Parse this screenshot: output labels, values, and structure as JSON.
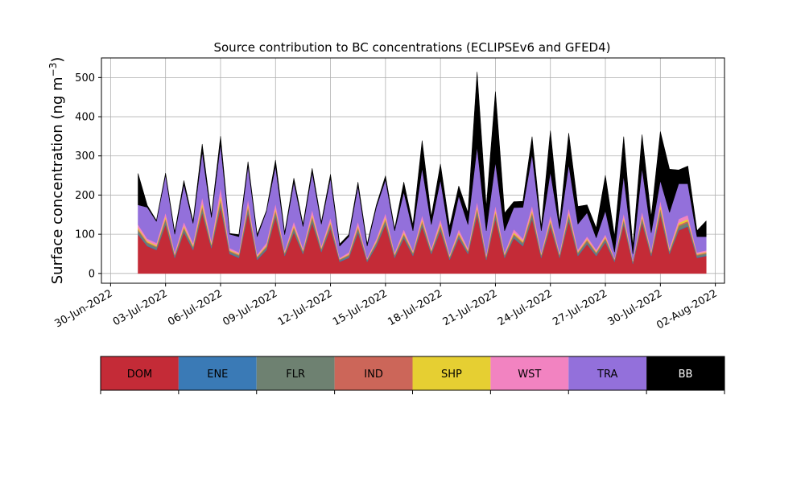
{
  "chart_data": {
    "type": "area",
    "title": "Source contribution to BC concentrations (ECLIPSEv6 and GFED4)",
    "ylabel": "Surface concentration (ng m",
    "ylabel_unit_exp": "−3",
    "ylabel_close": ")",
    "xlabel": "",
    "grid": true,
    "ylim": [
      -25,
      550
    ],
    "yticks": [
      0,
      100,
      200,
      300,
      400,
      500
    ],
    "xlim": [
      "2022-06-29T12:00",
      "2022-08-02T12:00"
    ],
    "xticks": [
      "2022-06-30",
      "2022-07-03",
      "2022-07-06",
      "2022-07-09",
      "2022-07-12",
      "2022-07-15",
      "2022-07-18",
      "2022-07-21",
      "2022-07-24",
      "2022-07-27",
      "2022-07-30",
      "2022-08-02"
    ],
    "xtick_labels": [
      "30-Jun-2022",
      "03-Jul-2022",
      "06-Jul-2022",
      "09-Jul-2022",
      "12-Jul-2022",
      "15-Jul-2022",
      "18-Jul-2022",
      "21-Jul-2022",
      "24-Jul-2022",
      "27-Jul-2022",
      "30-Jul-2022",
      "02-Aug-2022"
    ],
    "x": [
      "2022-07-01T12:00",
      "2022-07-02",
      "2022-07-02T12:00",
      "2022-07-03",
      "2022-07-03T12:00",
      "2022-07-04",
      "2022-07-04T12:00",
      "2022-07-05",
      "2022-07-05T12:00",
      "2022-07-06",
      "2022-07-06T12:00",
      "2022-07-07",
      "2022-07-07T12:00",
      "2022-07-08",
      "2022-07-08T12:00",
      "2022-07-09",
      "2022-07-09T12:00",
      "2022-07-10",
      "2022-07-10T12:00",
      "2022-07-11",
      "2022-07-11T12:00",
      "2022-07-12",
      "2022-07-12T12:00",
      "2022-07-13",
      "2022-07-13T12:00",
      "2022-07-14",
      "2022-07-14T12:00",
      "2022-07-15",
      "2022-07-15T12:00",
      "2022-07-16",
      "2022-07-16T12:00",
      "2022-07-17",
      "2022-07-17T12:00",
      "2022-07-18",
      "2022-07-18T12:00",
      "2022-07-19",
      "2022-07-19T12:00",
      "2022-07-20",
      "2022-07-20T12:00",
      "2022-07-21",
      "2022-07-21T12:00",
      "2022-07-22",
      "2022-07-22T12:00",
      "2022-07-23",
      "2022-07-23T12:00",
      "2022-07-24",
      "2022-07-24T12:00",
      "2022-07-25",
      "2022-07-25T12:00",
      "2022-07-26",
      "2022-07-26T12:00",
      "2022-07-27",
      "2022-07-27T12:00",
      "2022-07-28",
      "2022-07-28T12:00",
      "2022-07-29",
      "2022-07-29T12:00",
      "2022-07-30",
      "2022-07-30T12:00",
      "2022-07-31",
      "2022-07-31T12:00",
      "2022-08-01",
      "2022-08-01T12:00"
    ],
    "series": [
      {
        "name": "DOM",
        "color": "#c42b37",
        "values": [
          100,
          70,
          60,
          125,
          40,
          105,
          60,
          155,
          65,
          170,
          50,
          40,
          155,
          35,
          60,
          145,
          45,
          105,
          50,
          130,
          55,
          115,
          30,
          40,
          105,
          30,
          70,
          125,
          40,
          90,
          45,
          120,
          50,
          110,
          35,
          90,
          50,
          150,
          35,
          140,
          40,
          90,
          70,
          140,
          40,
          120,
          40,
          135,
          45,
          75,
          45,
          80,
          30,
          125,
          25,
          130,
          45,
          150,
          50,
          110,
          120,
          40,
          45
        ]
      },
      {
        "name": "ENE",
        "color": "#3a7ab6",
        "values": [
          2,
          2,
          2,
          2,
          2,
          2,
          2,
          2,
          2,
          2,
          2,
          2,
          2,
          2,
          2,
          2,
          2,
          2,
          2,
          2,
          2,
          2,
          2,
          2,
          2,
          2,
          2,
          2,
          2,
          2,
          2,
          2,
          2,
          2,
          2,
          2,
          2,
          2,
          2,
          2,
          2,
          2,
          2,
          2,
          2,
          2,
          2,
          2,
          2,
          2,
          2,
          2,
          2,
          2,
          2,
          2,
          2,
          2,
          2,
          2,
          2,
          2,
          2
        ]
      },
      {
        "name": "FLR",
        "color": "#6e8171",
        "values": [
          8,
          6,
          5,
          10,
          4,
          8,
          5,
          10,
          5,
          12,
          4,
          4,
          10,
          4,
          5,
          10,
          4,
          8,
          4,
          10,
          5,
          8,
          3,
          4,
          8,
          3,
          6,
          8,
          4,
          6,
          4,
          8,
          4,
          8,
          4,
          6,
          4,
          10,
          4,
          10,
          4,
          6,
          5,
          10,
          4,
          8,
          4,
          10,
          5,
          6,
          5,
          6,
          3,
          8,
          3,
          8,
          4,
          10,
          4,
          8,
          8,
          4,
          4
        ]
      },
      {
        "name": "IND",
        "color": "#cc6659",
        "values": [
          3,
          2,
          2,
          4,
          2,
          3,
          2,
          5,
          2,
          6,
          2,
          2,
          5,
          2,
          2,
          5,
          2,
          4,
          2,
          4,
          2,
          4,
          1,
          2,
          4,
          1,
          2,
          4,
          2,
          3,
          2,
          4,
          2,
          4,
          2,
          3,
          2,
          5,
          2,
          5,
          2,
          3,
          3,
          5,
          2,
          4,
          2,
          4,
          2,
          3,
          2,
          3,
          1,
          4,
          1,
          4,
          2,
          5,
          2,
          4,
          4,
          2,
          2
        ]
      },
      {
        "name": "SHP",
        "color": "#e6cf32",
        "values": [
          4,
          3,
          3,
          5,
          2,
          4,
          3,
          8,
          3,
          10,
          2,
          2,
          6,
          2,
          3,
          5,
          2,
          4,
          2,
          5,
          2,
          4,
          1,
          2,
          4,
          1,
          3,
          5,
          2,
          4,
          2,
          5,
          2,
          5,
          2,
          4,
          2,
          5,
          2,
          5,
          2,
          4,
          3,
          5,
          2,
          5,
          2,
          5,
          2,
          3,
          2,
          3,
          1,
          5,
          1,
          5,
          2,
          8,
          3,
          5,
          5,
          2,
          2
        ]
      },
      {
        "name": "WST",
        "color": "#f283c1",
        "values": [
          8,
          6,
          6,
          10,
          5,
          10,
          6,
          15,
          6,
          20,
          5,
          4,
          12,
          4,
          6,
          12,
          4,
          10,
          5,
          12,
          5,
          10,
          3,
          4,
          10,
          3,
          6,
          10,
          4,
          8,
          4,
          10,
          5,
          10,
          4,
          8,
          5,
          12,
          4,
          12,
          4,
          8,
          6,
          12,
          4,
          10,
          4,
          12,
          5,
          6,
          5,
          6,
          3,
          10,
          3,
          10,
          4,
          12,
          5,
          10,
          10,
          4,
          4
        ]
      },
      {
        "name": "TRA",
        "color": "#9370db",
        "values": [
          50,
          80,
          55,
          95,
          45,
          95,
          50,
          115,
          60,
          110,
          35,
          40,
          85,
          45,
          80,
          95,
          40,
          100,
          55,
          95,
          55,
          100,
          30,
          40,
          90,
          30,
          80,
          85,
          55,
          95,
          50,
          120,
          60,
          100,
          45,
          85,
          60,
          140,
          60,
          110,
          55,
          55,
          80,
          130,
          55,
          110,
          60,
          110,
          65,
          60,
          30,
          60,
          15,
          95,
          15,
          110,
          45,
          50,
          90,
          90,
          80,
          40,
          35
        ]
      },
      {
        "name": "BB",
        "color": "#000000",
        "values": [
          80,
          5,
          2,
          5,
          5,
          10,
          5,
          20,
          5,
          20,
          2,
          5,
          10,
          5,
          2,
          15,
          5,
          10,
          5,
          10,
          5,
          10,
          5,
          5,
          10,
          5,
          5,
          10,
          5,
          25,
          15,
          70,
          20,
          40,
          25,
          25,
          30,
          190,
          60,
          180,
          45,
          15,
          15,
          45,
          10,
          105,
          15,
          80,
          45,
          20,
          25,
          90,
          40,
          100,
          20,
          85,
          40,
          125,
          110,
          35,
          45,
          15,
          40
        ]
      }
    ],
    "legend": {
      "placement": "bottom (color bar)",
      "entries": [
        "DOM",
        "ENE",
        "FLR",
        "IND",
        "SHP",
        "WST",
        "TRA",
        "BB"
      ]
    }
  }
}
